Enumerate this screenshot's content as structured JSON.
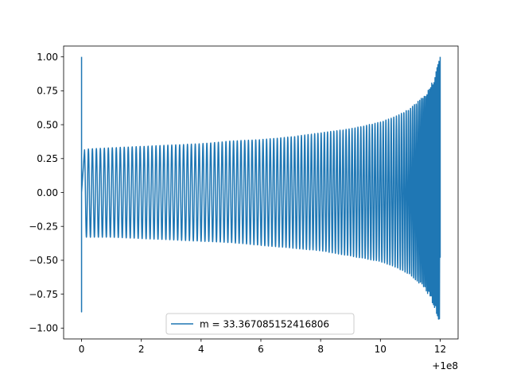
{
  "chart_data": {
    "type": "line",
    "title": "",
    "xlabel": "",
    "ylabel": "",
    "x_offset_label": "+1e8",
    "xlim": [
      -0.6,
      12.6
    ],
    "ylim": [
      -1.08,
      1.08
    ],
    "x_ticks": [
      0,
      2,
      4,
      6,
      8,
      10,
      12
    ],
    "x_tick_labels": [
      "0",
      "2",
      "4",
      "6",
      "8",
      "10",
      "12"
    ],
    "y_ticks": [
      1.0,
      0.75,
      0.5,
      0.25,
      0.0,
      -0.25,
      -0.5,
      -0.75,
      -1.0
    ],
    "y_tick_labels": [
      "1.00",
      "0.75",
      "0.50",
      "0.25",
      "0.00",
      "−0.25",
      "−0.50",
      "−0.75",
      "−1.00"
    ],
    "grid": false,
    "legend_position": "bottom-center",
    "series": [
      {
        "name": "m = 33.367085152416806",
        "color": "#1f77b4",
        "start": {
          "x": 0.0,
          "y_max": 1.0,
          "y_min": -0.88
        },
        "envelope": {
          "x": [
            0.1,
            1,
            2,
            3,
            4,
            5,
            6,
            7,
            8,
            9,
            10,
            10.5,
            11,
            11.5,
            11.8,
            12.0
          ],
          "upper": [
            0.32,
            0.33,
            0.34,
            0.35,
            0.36,
            0.38,
            0.39,
            0.41,
            0.44,
            0.47,
            0.52,
            0.56,
            0.62,
            0.72,
            0.85,
            1.0
          ],
          "lower": [
            -0.33,
            -0.33,
            -0.34,
            -0.35,
            -0.36,
            -0.37,
            -0.39,
            -0.41,
            -0.43,
            -0.47,
            -0.51,
            -0.55,
            -0.61,
            -0.71,
            -0.84,
            -0.97
          ]
        }
      }
    ]
  }
}
